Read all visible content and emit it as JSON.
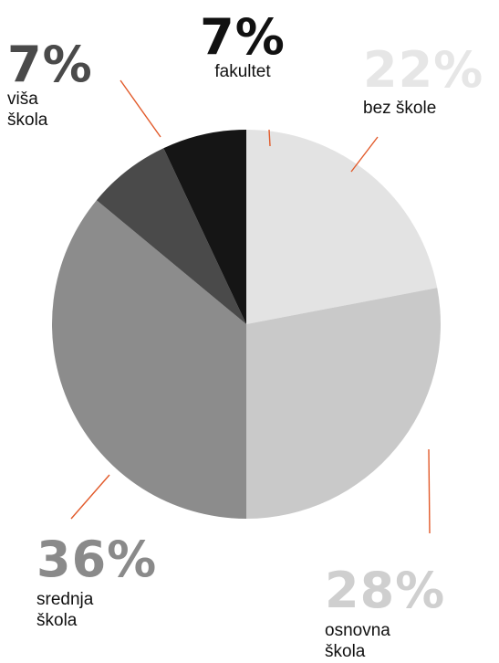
{
  "chart_data": {
    "type": "pie",
    "slices": [
      {
        "label": "bez škole",
        "value": 22,
        "display": "22%",
        "color": "#e3e3e3",
        "pct_color": "#e6e6e6"
      },
      {
        "label": "osnovna škola",
        "value": 28,
        "display": "28%",
        "color": "#c9c9c9",
        "pct_color": "#cfcfcf"
      },
      {
        "label": "srednja škola",
        "value": 36,
        "display": "36%",
        "color": "#8c8c8c",
        "pct_color": "#8a8a8a"
      },
      {
        "label": "viša škola",
        "value": 7,
        "display": "7%",
        "color": "#4a4a4a",
        "pct_color": "#4a4a4a"
      },
      {
        "label": "fakultet",
        "value": 7,
        "display": "7%",
        "color": "#151515",
        "pct_color": "#111111"
      }
    ],
    "label_lines": {
      "bez_skole": [
        "bez škole"
      ],
      "osnovna_skola": [
        "osnovna",
        "škola"
      ],
      "srednja_skola": [
        "srednja",
        "škola"
      ],
      "visa_skola": [
        "viša",
        "škola"
      ],
      "fakultet": [
        "fakultet"
      ]
    },
    "leader_color": "#e25a2a"
  }
}
